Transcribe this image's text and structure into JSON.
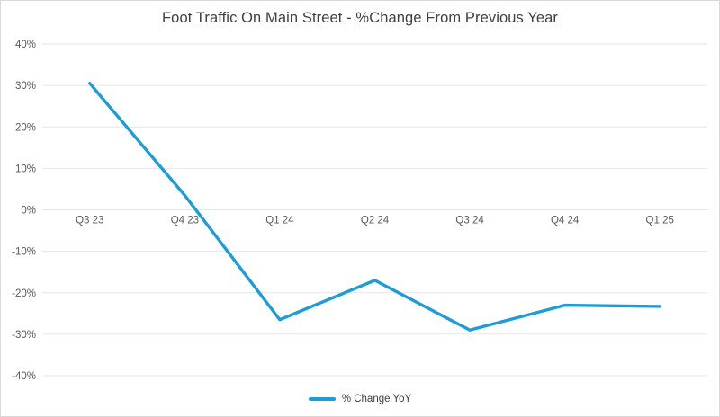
{
  "chart": {
    "legend": {
      "label": "% Change YoY",
      "position": "bottom-center"
    }
  },
  "chart_data": {
    "type": "line",
    "title": "Foot Traffic On Main Street - %Change From Previous Year",
    "xlabel": "",
    "ylabel": "",
    "categories": [
      "Q3 23",
      "Q4 23",
      "Q1 24",
      "Q2 24",
      "Q3 24",
      "Q4 24",
      "Q1 25"
    ],
    "series": [
      {
        "name": "% Change YoY",
        "values": [
          30.5,
          3.5,
          -26.5,
          -17,
          -29,
          -23,
          -23.3
        ],
        "color": "#1E9CD7"
      }
    ],
    "ylim": [
      -40,
      40
    ],
    "ytick_step": 10,
    "y_ticks": [
      {
        "value": 40,
        "label": "40%"
      },
      {
        "value": 30,
        "label": "30%"
      },
      {
        "value": 20,
        "label": "20%"
      },
      {
        "value": 10,
        "label": "10%"
      },
      {
        "value": 0,
        "label": "0%"
      },
      {
        "value": -10,
        "label": "-10%"
      },
      {
        "value": -20,
        "label": "-20%"
      },
      {
        "value": -30,
        "label": "-30%"
      },
      {
        "value": -40,
        "label": "-40%"
      }
    ],
    "grid": true,
    "x_labels_at_zero_axis": true,
    "legend_position": "bottom",
    "colors": {
      "line": "#1E9CD7",
      "gridline": "#E6E6E6",
      "axis_text": "#595959",
      "title_text": "#404040",
      "border": "#D9D9D9",
      "background": "#FFFFFF"
    }
  }
}
